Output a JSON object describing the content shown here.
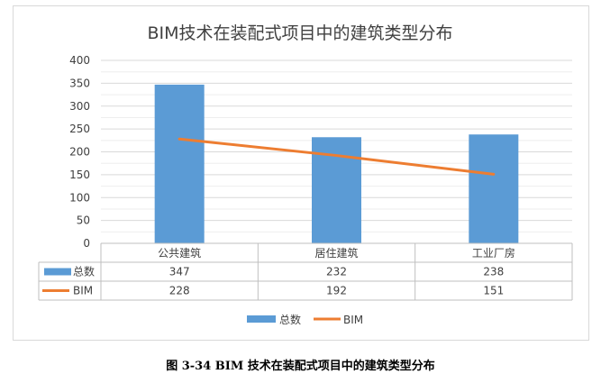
{
  "chart_data": {
    "type": "bar",
    "title": "BIM技术在装配式项目中的建筑类型分布",
    "categories": [
      "公共建筑",
      "居住建筑",
      "工业厂房"
    ],
    "series": [
      {
        "name": "总数",
        "type": "bar",
        "values": [
          347,
          232,
          238
        ],
        "color": "#5b9bd5"
      },
      {
        "name": "BIM",
        "type": "line",
        "values": [
          228,
          192,
          151
        ],
        "color": "#ed7d31"
      }
    ],
    "ylim": [
      0,
      400
    ],
    "yticks": [
      "0",
      "50",
      "100",
      "150",
      "200",
      "250",
      "300",
      "350",
      "400"
    ],
    "grid": true,
    "legend": "bottom",
    "data_table": true
  },
  "caption": "图 3-34 BIM 技术在装配式项目中的建筑类型分布"
}
